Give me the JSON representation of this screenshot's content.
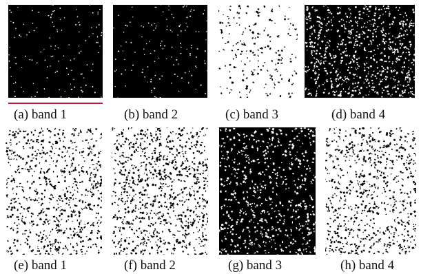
{
  "figure": {
    "panels": [
      {
        "caption": "(a) band 1",
        "texture": "dark-sparse"
      },
      {
        "caption": "(b) band 2",
        "texture": "dark-sparse"
      },
      {
        "caption": "(c) band 3",
        "texture": "bright"
      },
      {
        "caption": "(d) band 4",
        "texture": "mixed"
      },
      {
        "caption": "(e) band 1",
        "texture": "terrain-light"
      },
      {
        "caption": "(f) band 2",
        "texture": "terrain-mid"
      },
      {
        "caption": "(g) band 3",
        "texture": "terrain-dark"
      },
      {
        "caption": "(h) band 4",
        "texture": "terrain-light"
      }
    ],
    "accent_color": "#c0143c"
  }
}
